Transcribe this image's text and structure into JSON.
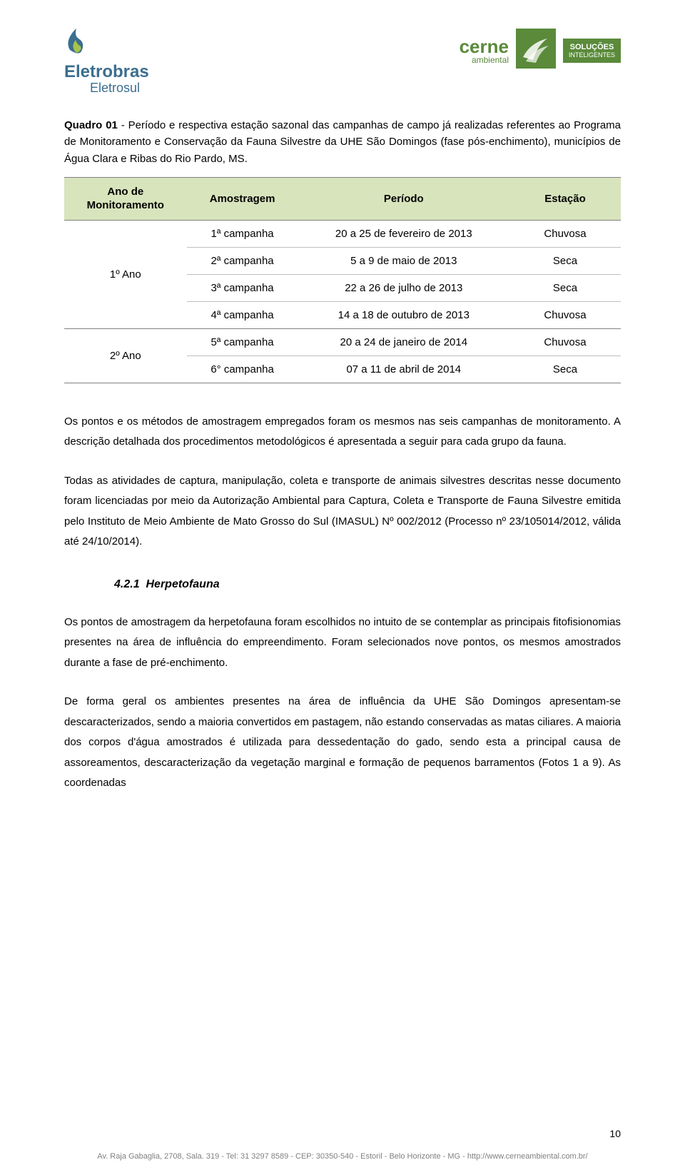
{
  "header": {
    "eletrobras": "Eletrobras",
    "eletrosul": "Eletrosul",
    "cerne": "cerne",
    "ambiental": "ambiental",
    "solucoes": "SOLUÇÕES",
    "inteligentes": "INTELIGENTES"
  },
  "caption": {
    "lead": "Quadro 01",
    "text": " - Período e respectiva estação sazonal das campanhas de campo já realizadas referentes ao Programa de Monitoramento e Conservação da Fauna Silvestre da UHE São Domingos (fase pós-enchimento), municípios de Água Clara e Ribas do Rio Pardo, MS."
  },
  "table": {
    "header_bg": "#d8e4bc",
    "border_color": "#808080",
    "row_border_color": "#bfbfbf",
    "columns": [
      "Ano de Monitoramento",
      "Amostragem",
      "Período",
      "Estação"
    ],
    "groups": [
      {
        "year": "1º Ano",
        "rows": [
          {
            "amostragem": "1ª campanha",
            "periodo": "20 a 25 de fevereiro de 2013",
            "estacao": "Chuvosa"
          },
          {
            "amostragem": "2ª campanha",
            "periodo": "5 a 9 de maio de 2013",
            "estacao": "Seca"
          },
          {
            "amostragem": "3ª campanha",
            "periodo": "22 a 26 de julho de 2013",
            "estacao": "Seca"
          },
          {
            "amostragem": "4ª campanha",
            "periodo": "14 a 18 de outubro de 2013",
            "estacao": "Chuvosa"
          }
        ]
      },
      {
        "year": "2º Ano",
        "rows": [
          {
            "amostragem": "5ª campanha",
            "periodo": "20 a 24 de janeiro de 2014",
            "estacao": "Chuvosa"
          },
          {
            "amostragem": "6° campanha",
            "periodo": "07 a 11 de abril de 2014",
            "estacao": "Seca"
          }
        ]
      }
    ]
  },
  "paragraphs": {
    "p1": "Os pontos e os métodos de amostragem empregados foram os mesmos nas seis campanhas de monitoramento. A descrição detalhada dos procedimentos metodológicos é apresentada a seguir para cada grupo da fauna.",
    "p2": "Todas as atividades de captura, manipulação, coleta e transporte de animais silvestres descritas nesse documento foram licenciadas por meio da Autorização Ambiental para Captura, Coleta e Transporte de Fauna Silvestre emitida pelo Instituto de Meio Ambiente de Mato Grosso do Sul (IMASUL) Nº 002/2012 (Processo nº 23/105014/2012, válida até 24/10/2014).",
    "p3": "Os pontos de amostragem da herpetofauna foram escolhidos no intuito de se contemplar as principais fitofisionomias presentes na área de influência do empreendimento. Foram selecionados nove pontos, os mesmos amostrados durante a fase de pré-enchimento.",
    "p4": "De forma geral os ambientes presentes na área de influência da UHE São Domingos apresentam-se descaracterizados, sendo a maioria convertidos em pastagem, não estando conservadas as matas ciliares. A maioria dos corpos d'água amostrados é utilizada para dessedentação do gado, sendo esta a principal causa de assoreamentos, descaracterização da vegetação marginal e formação de pequenos barramentos (Fotos 1 a 9). As coordenadas"
  },
  "section": {
    "number": "4.2.1",
    "title": "Herpetofauna"
  },
  "page_number": "10",
  "footer": "Av. Raja Gabaglia, 2708, Sala. 319 - Tel: 31 3297 8589 - CEP: 30350-540 - Estoril - Belo Horizonte - MG  -  http://www.cerneambiental.com.br/"
}
